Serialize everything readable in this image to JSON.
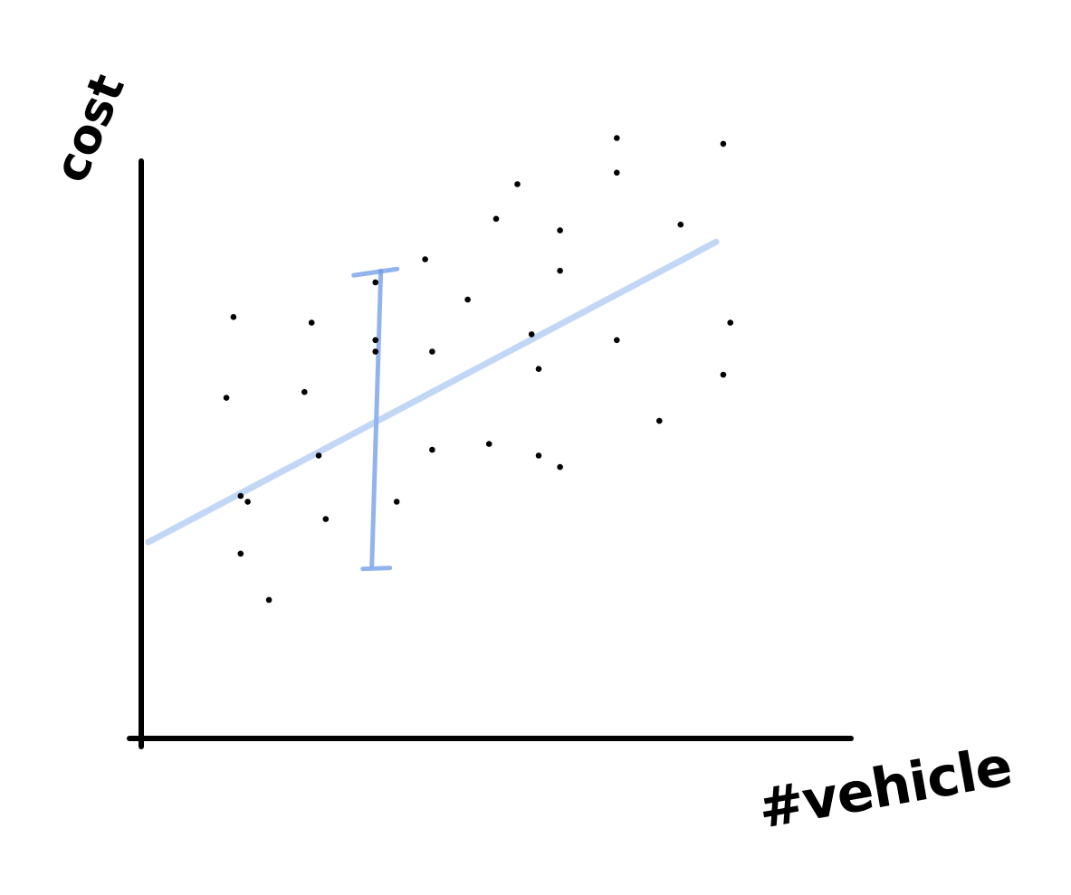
{
  "chart_data": {
    "type": "scatter",
    "title": "",
    "xlabel": "#vehicle",
    "ylabel": "cost",
    "xlim": [
      0,
      10
    ],
    "ylim": [
      0,
      10
    ],
    "grid": false,
    "points": [
      {
        "x": 1.3,
        "y": 7.3
      },
      {
        "x": 2.4,
        "y": 7.2
      },
      {
        "x": 3.3,
        "y": 7.9
      },
      {
        "x": 3.3,
        "y": 6.9
      },
      {
        "x": 3.3,
        "y": 6.7
      },
      {
        "x": 4.0,
        "y": 8.3
      },
      {
        "x": 4.1,
        "y": 6.7
      },
      {
        "x": 4.6,
        "y": 7.6
      },
      {
        "x": 5.0,
        "y": 9.0
      },
      {
        "x": 5.3,
        "y": 9.6
      },
      {
        "x": 5.5,
        "y": 7.0
      },
      {
        "x": 5.6,
        "y": 6.4
      },
      {
        "x": 5.9,
        "y": 8.8
      },
      {
        "x": 5.9,
        "y": 8.1
      },
      {
        "x": 6.7,
        "y": 10.4
      },
      {
        "x": 6.7,
        "y": 9.8
      },
      {
        "x": 6.7,
        "y": 6.9
      },
      {
        "x": 7.6,
        "y": 8.9
      },
      {
        "x": 8.2,
        "y": 10.3
      },
      {
        "x": 8.3,
        "y": 7.2
      },
      {
        "x": 8.2,
        "y": 6.3
      },
      {
        "x": 1.2,
        "y": 5.9
      },
      {
        "x": 2.3,
        "y": 6.0
      },
      {
        "x": 2.5,
        "y": 4.9
      },
      {
        "x": 4.1,
        "y": 5.0
      },
      {
        "x": 4.9,
        "y": 5.1
      },
      {
        "x": 5.6,
        "y": 4.9
      },
      {
        "x": 5.9,
        "y": 4.7
      },
      {
        "x": 7.3,
        "y": 5.5
      },
      {
        "x": 1.4,
        "y": 4.2
      },
      {
        "x": 1.5,
        "y": 4.1
      },
      {
        "x": 2.6,
        "y": 3.8
      },
      {
        "x": 3.6,
        "y": 4.1
      },
      {
        "x": 1.4,
        "y": 3.2
      },
      {
        "x": 1.8,
        "y": 2.4
      }
    ],
    "trend_line": {
      "from": {
        "x": 0.1,
        "y": 3.4
      },
      "to": {
        "x": 8.1,
        "y": 8.6
      }
    },
    "error_bar": {
      "x": 3.3,
      "y_low": 3.0,
      "y_high": 8.1
    },
    "colors": {
      "points": "#000000",
      "axes": "#000000",
      "trend": "#8fb4ef",
      "error_bar": "#6e9be6"
    }
  }
}
